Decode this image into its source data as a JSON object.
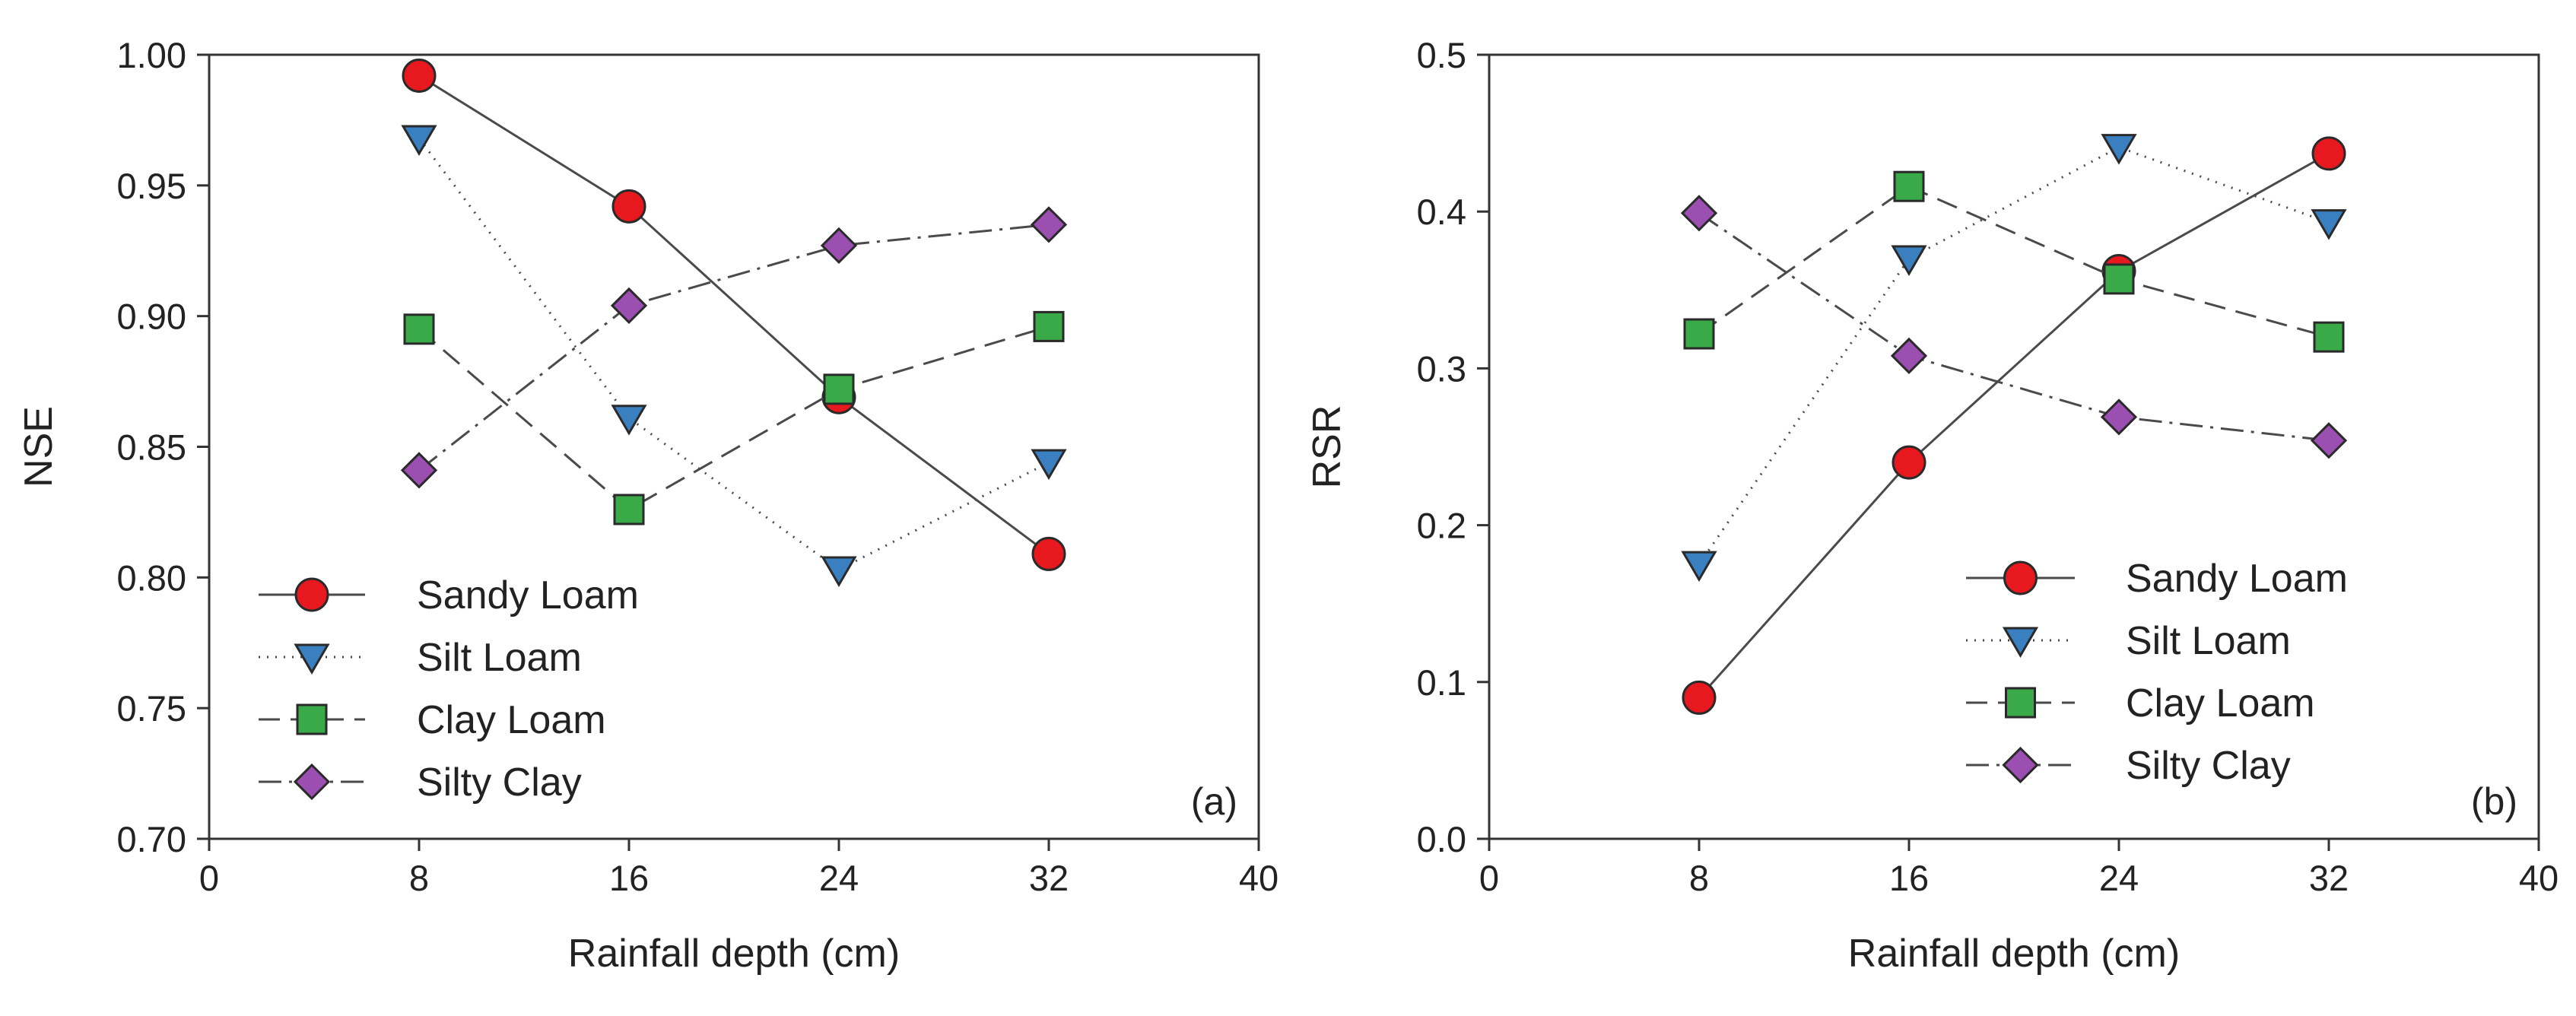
{
  "chart_data": [
    {
      "type": "line",
      "panel_label": "(a)",
      "xlabel": "Rainfall depth (cm)",
      "ylabel": "NSE",
      "xlim": [
        0,
        40
      ],
      "ylim": [
        0.7,
        1.0
      ],
      "xticks": [
        "0",
        "8",
        "16",
        "24",
        "32",
        "40"
      ],
      "yticks": [
        "0.70",
        "0.75",
        "0.80",
        "0.85",
        "0.90",
        "0.95",
        "1.00"
      ],
      "x": [
        8,
        16,
        24,
        32
      ],
      "legend_position": "bottom-left",
      "series": [
        {
          "name": "Sandy Loam",
          "values": [
            0.992,
            0.942,
            0.869,
            0.809
          ]
        },
        {
          "name": "Silt Loam",
          "values": [
            0.968,
            0.861,
            0.803,
            0.844
          ]
        },
        {
          "name": "Clay Loam",
          "values": [
            0.895,
            0.826,
            0.872,
            0.896
          ]
        },
        {
          "name": "Silty Clay",
          "values": [
            0.841,
            0.904,
            0.927,
            0.935
          ]
        }
      ]
    },
    {
      "type": "line",
      "panel_label": "(b)",
      "xlabel": "Rainfall depth (cm)",
      "ylabel": "RSR",
      "xlim": [
        0,
        40
      ],
      "ylim": [
        0.0,
        0.5
      ],
      "xticks": [
        "0",
        "8",
        "16",
        "24",
        "32",
        "40"
      ],
      "yticks": [
        "0.0",
        "0.1",
        "0.2",
        "0.3",
        "0.4",
        "0.5"
      ],
      "x": [
        8,
        16,
        24,
        32
      ],
      "legend_position": "bottom-right",
      "series": [
        {
          "name": "Sandy Loam",
          "values": [
            0.09,
            0.24,
            0.362,
            0.437
          ]
        },
        {
          "name": "Silt Loam",
          "values": [
            0.175,
            0.37,
            0.441,
            0.393
          ]
        },
        {
          "name": "Clay Loam",
          "values": [
            0.322,
            0.416,
            0.357,
            0.32
          ]
        },
        {
          "name": "Silty Clay",
          "values": [
            0.399,
            0.308,
            0.269,
            0.254
          ]
        }
      ]
    }
  ],
  "styles": {
    "Sandy Loam": {
      "marker": "circle",
      "color": "#e8191e",
      "dash": ""
    },
    "Silt Loam": {
      "marker": "triangle-down",
      "color": "#3a7fc0",
      "dash": "2 9"
    },
    "Clay Loam": {
      "marker": "square",
      "color": "#3aaa48",
      "dash": "28 14"
    },
    "Silty Clay": {
      "marker": "diamond",
      "color": "#9b4fb0",
      "dash": "30 10 4 10"
    }
  }
}
